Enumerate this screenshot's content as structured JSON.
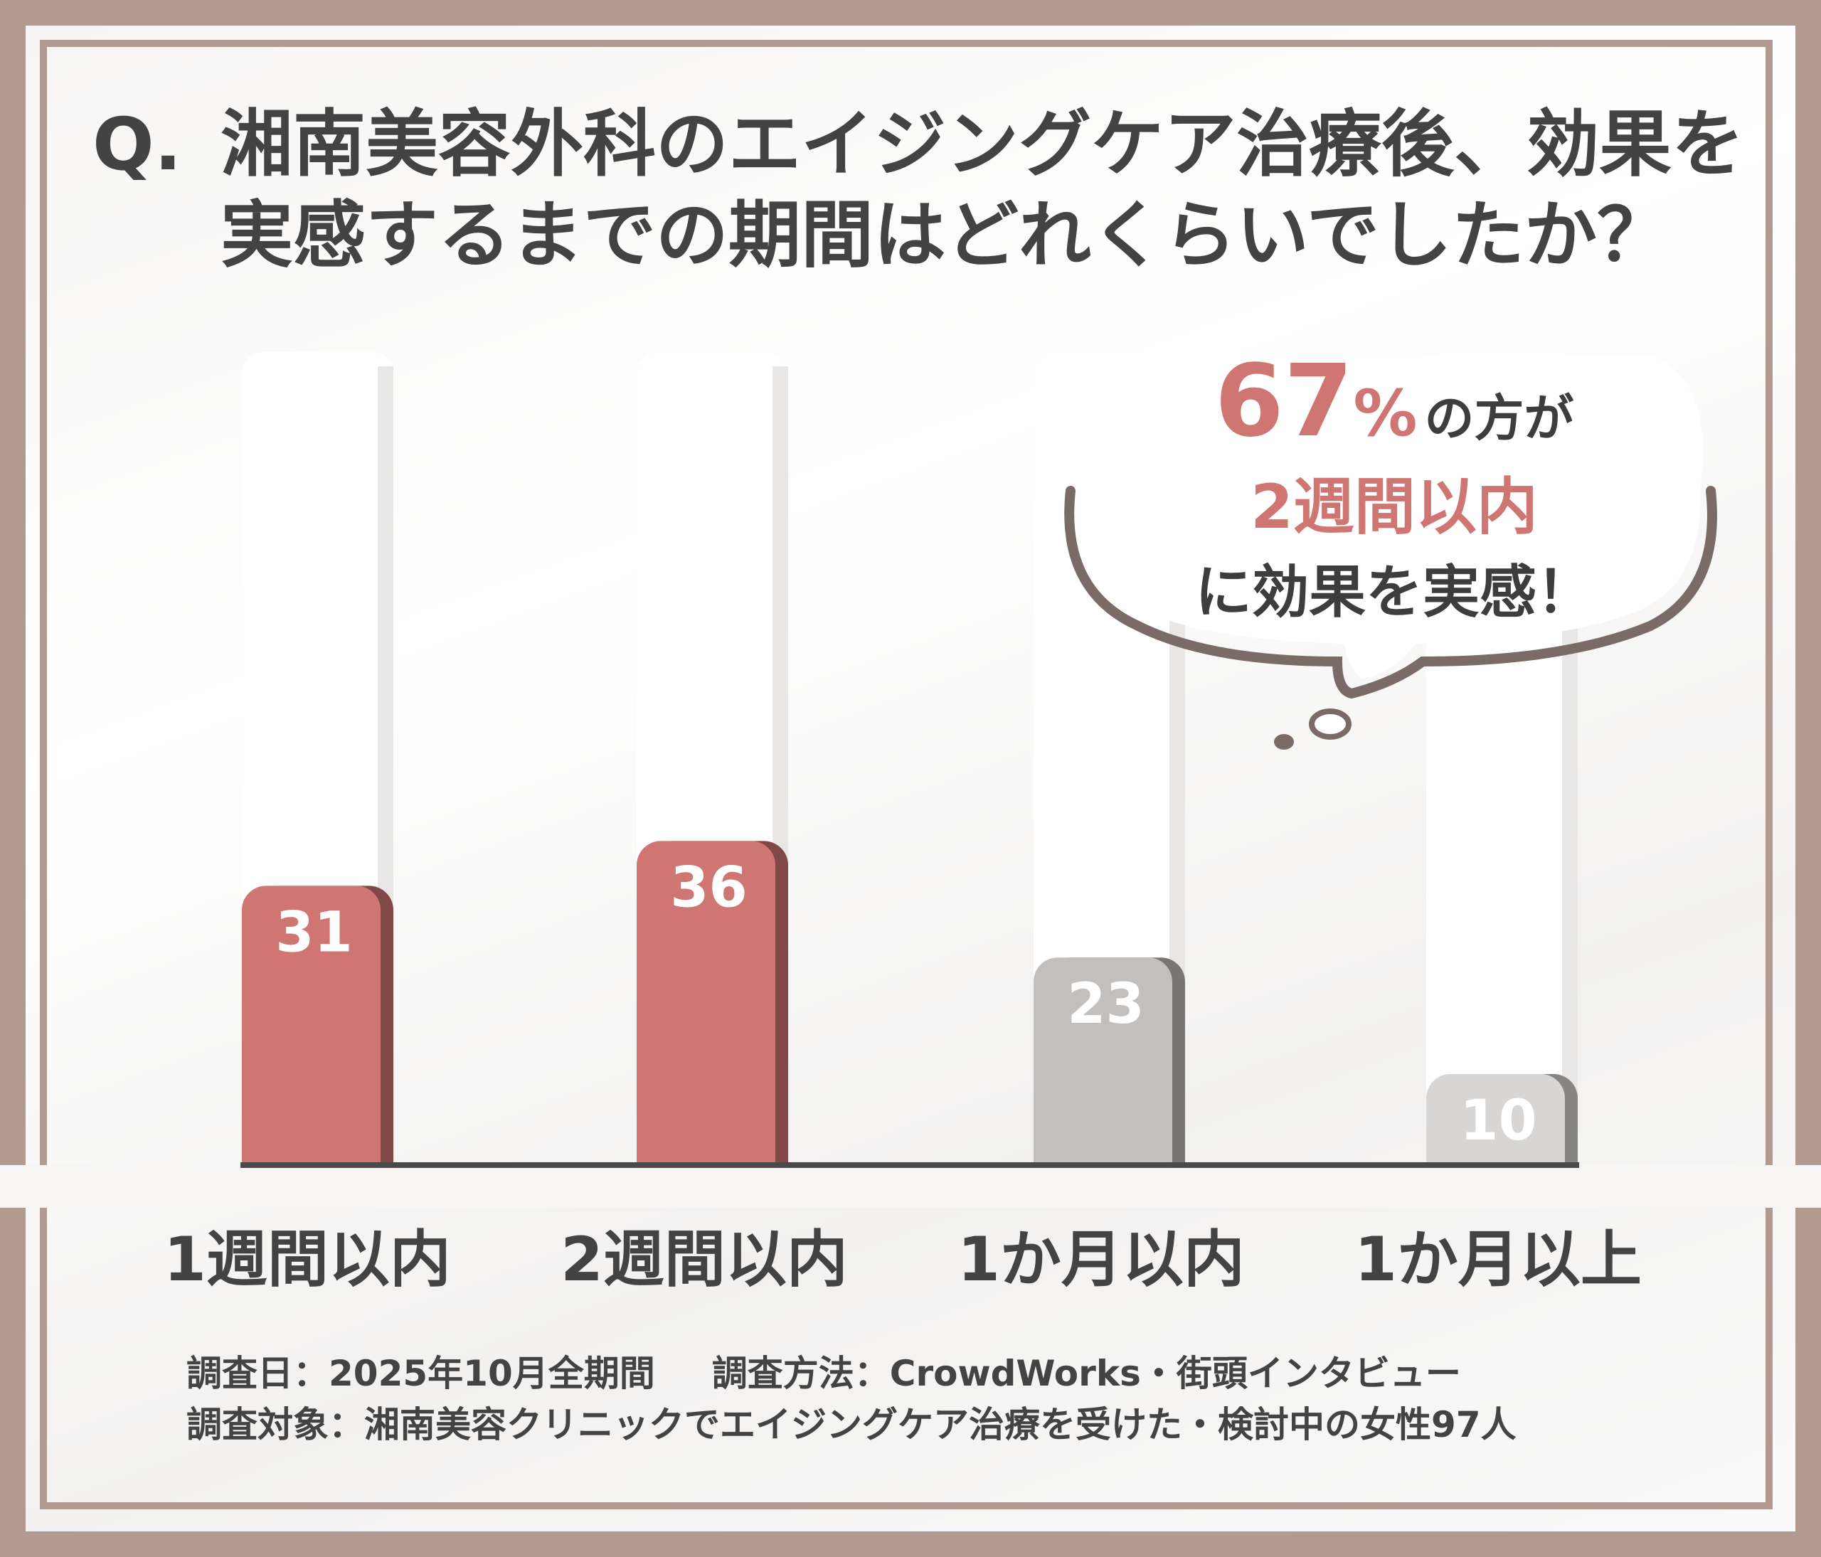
{
  "title": {
    "prefix": "Q.",
    "line1": "湘南美容外科のエイジングケア治療後、効果を",
    "line2": "実感するまでの期間はどれくらいでしたか？"
  },
  "chart_data": {
    "type": "bar",
    "categories": [
      "1週間以内",
      "2週間以内",
      "1か月以内",
      "1か月以上"
    ],
    "values": [
      31,
      36,
      23,
      10
    ],
    "value_labels": [
      "31",
      "36",
      "23",
      "10"
    ],
    "colors": [
      "#cf7672",
      "#cf7672",
      "#c2bfbd",
      "#d8d6d4"
    ],
    "ylim": [
      0,
      100
    ],
    "grid": false,
    "legend": "none"
  },
  "callout": {
    "percent": "67",
    "percent_sign": "%",
    "line1_suffix": "の方が",
    "line2": "2週間以内",
    "line3": "に効果を実感！"
  },
  "footer": {
    "date": "調査日：2025年10月全期間",
    "method": "調査方法：CrowdWorks・街頭インタビュー",
    "target": "調査対象：湘南美容クリニックでエイジングケア治療を受けた・検討中の女性97人"
  },
  "colors": {
    "accent": "#cf7672",
    "frame": "#b29a90",
    "text": "#434343"
  }
}
